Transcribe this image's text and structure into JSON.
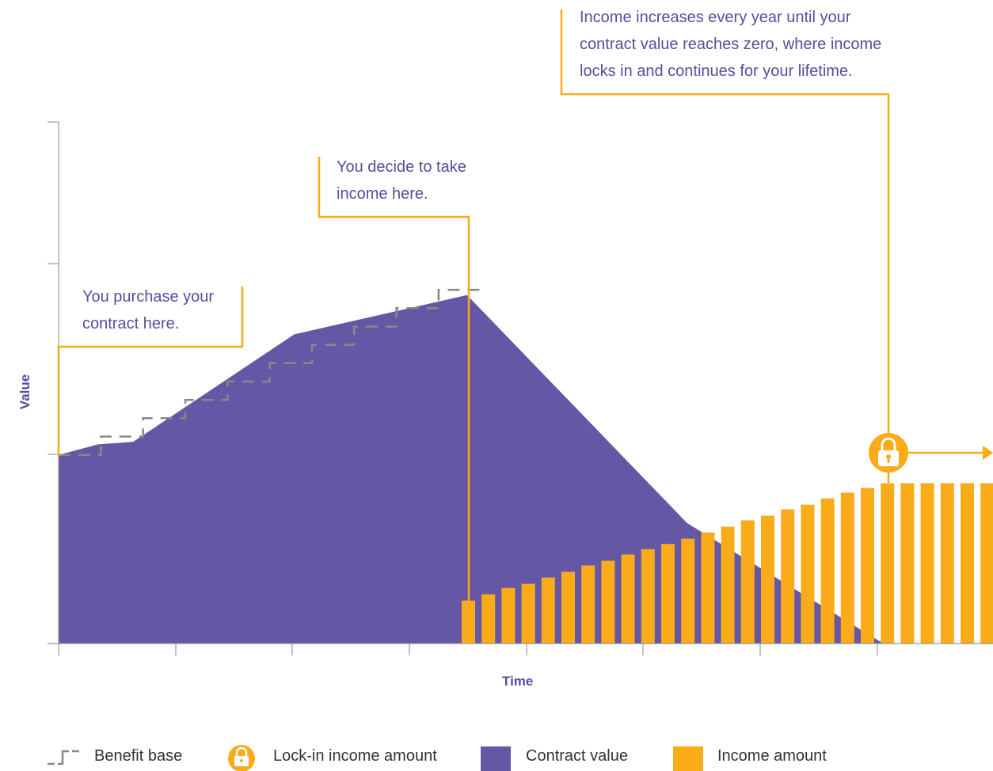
{
  "chart_data": {
    "type": "area",
    "xlabel": "Time",
    "ylabel": "Value",
    "colors": {
      "contract_value": "#6657A6",
      "income": "#F9AB19",
      "benefit_base": "#888888",
      "annotation_text": "#5B4A9E"
    },
    "purchase_index": 0,
    "income_start_index": 20.5,
    "lock_in_index": 41.5,
    "ylim": [
      0,
      10
    ],
    "contract_value": {
      "x": [
        0,
        2,
        3.8,
        8,
        12,
        20.8,
        32,
        42
      ],
      "y": [
        3.6,
        3.8,
        3.85,
        4.9,
        5.9,
        6.65,
        2.3,
        0
      ]
    },
    "benefit_base": {
      "steps": [
        3.6,
        3.95,
        4.3,
        4.65,
        5.0,
        5.35,
        5.7,
        6.05,
        6.4,
        6.75
      ],
      "step_width": 2.15
    },
    "income_amount": {
      "values": [
        0.82,
        0.94,
        1.06,
        1.14,
        1.26,
        1.37,
        1.49,
        1.58,
        1.7,
        1.8,
        1.9,
        2.0,
        2.12,
        2.23,
        2.35,
        2.44,
        2.56,
        2.65,
        2.77,
        2.88,
        2.97,
        3.06,
        3.06,
        3.06,
        3.06,
        3.06,
        3.06
      ],
      "lock_in_bar": 21
    }
  },
  "annotations": {
    "purchase": [
      "You purchase your",
      "contract here."
    ],
    "take_income": [
      "You decide to take",
      "income here."
    ],
    "lock_in": [
      "Income increases every year until your",
      "contract value reaches zero, where income",
      "locks in and continues for your lifetime."
    ]
  },
  "legend": {
    "benefit_base": "Benefit base",
    "lock_in": "Lock-in income amount",
    "contract_value": "Contract value",
    "income_amount": "Income amount"
  }
}
